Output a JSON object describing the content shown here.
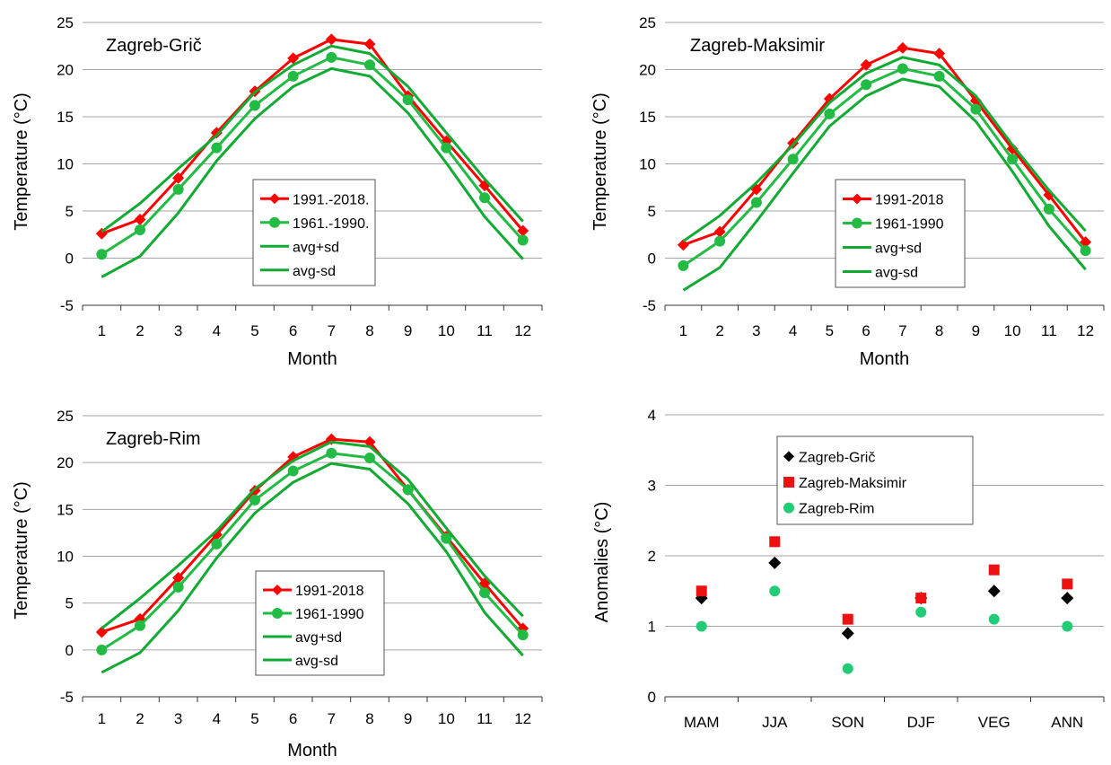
{
  "colors": {
    "recent": "#ff0000",
    "baseline": "#22bb44",
    "band": "#11aa33",
    "grid": "#a6a6a6",
    "marker_gric": "#000000",
    "marker_maksimir": "#ee1111",
    "marker_rim": "#22cc77"
  },
  "chart_data": [
    {
      "type": "line",
      "title": "Zagreb-Grič",
      "xlabel": "Month",
      "ylabel": "Temperature (°C)",
      "ylim": [
        -5,
        25
      ],
      "yticks": [
        "25",
        "20",
        "15",
        "10",
        "5",
        "0",
        "-5"
      ],
      "categories": [
        "1",
        "2",
        "3",
        "4",
        "5",
        "6",
        "7",
        "8",
        "9",
        "10",
        "11",
        "12"
      ],
      "legend_position": "center",
      "series": [
        {
          "name": "1991.-2018.",
          "role": "recent",
          "marker": "diamond",
          "values": [
            2.6,
            4.1,
            8.5,
            13.3,
            17.7,
            21.2,
            23.2,
            22.7,
            17.2,
            12.4,
            7.7,
            2.9
          ]
        },
        {
          "name": "1961.-1990.",
          "role": "baseline",
          "marker": "circle",
          "values": [
            0.4,
            3.0,
            7.3,
            11.7,
            16.2,
            19.3,
            21.3,
            20.5,
            16.8,
            11.7,
            6.4,
            1.9
          ]
        },
        {
          "name": "avg+sd",
          "role": "band",
          "marker": "none",
          "values": [
            2.8,
            5.8,
            9.5,
            13.0,
            17.6,
            20.5,
            22.5,
            21.7,
            18.2,
            13.3,
            8.4,
            3.9
          ]
        },
        {
          "name": "avg-sd",
          "role": "band",
          "marker": "none",
          "values": [
            -2.0,
            0.2,
            4.8,
            10.3,
            14.8,
            18.2,
            20.1,
            19.3,
            15.4,
            10.1,
            4.4,
            -0.1
          ]
        }
      ]
    },
    {
      "type": "line",
      "title": "Zagreb-Maksimir",
      "xlabel": "Month",
      "ylabel": "Temperature (°C)",
      "ylim": [
        -5,
        25
      ],
      "yticks": [
        "25",
        "20",
        "15",
        "10",
        "5",
        "0",
        "-5"
      ],
      "categories": [
        "1",
        "2",
        "3",
        "4",
        "5",
        "6",
        "7",
        "8",
        "9",
        "10",
        "11",
        "12"
      ],
      "legend_position": "center",
      "series": [
        {
          "name": "1991-2018",
          "role": "recent",
          "marker": "diamond",
          "values": [
            1.4,
            2.8,
            7.3,
            12.2,
            16.9,
            20.5,
            22.3,
            21.7,
            16.7,
            11.6,
            6.7,
            1.7
          ]
        },
        {
          "name": "1961-1990",
          "role": "baseline",
          "marker": "circle",
          "values": [
            -0.8,
            1.8,
            5.9,
            10.5,
            15.3,
            18.4,
            20.1,
            19.3,
            15.8,
            10.5,
            5.2,
            0.8
          ]
        },
        {
          "name": "avg+sd",
          "role": "band",
          "marker": "none",
          "values": [
            1.8,
            4.5,
            8.0,
            12.0,
            16.5,
            19.6,
            21.3,
            20.5,
            17.2,
            12.0,
            7.2,
            2.9
          ]
        },
        {
          "name": "avg-sd",
          "role": "band",
          "marker": "none",
          "values": [
            -3.4,
            -1.0,
            3.9,
            9.0,
            14.0,
            17.2,
            19.0,
            18.2,
            14.5,
            9.2,
            3.4,
            -1.2
          ]
        }
      ]
    },
    {
      "type": "line",
      "title": "Zagreb-Rim",
      "xlabel": "Month",
      "ylabel": "Temperature (°C)",
      "ylim": [
        -5,
        25
      ],
      "yticks": [
        "25",
        "20",
        "15",
        "10",
        "5",
        "0",
        "-5"
      ],
      "categories": [
        "1",
        "2",
        "3",
        "4",
        "5",
        "6",
        "7",
        "8",
        "9",
        "10",
        "11",
        "12"
      ],
      "legend_position": "bottom-center",
      "series": [
        {
          "name": "1991-2018",
          "role": "recent",
          "marker": "diamond",
          "values": [
            1.9,
            3.3,
            7.7,
            12.3,
            17.0,
            20.6,
            22.5,
            22.2,
            17.1,
            12.1,
            7.1,
            2.3
          ]
        },
        {
          "name": "1961-1990",
          "role": "baseline",
          "marker": "circle",
          "values": [
            0.0,
            2.6,
            6.7,
            11.3,
            16.0,
            19.1,
            21.0,
            20.5,
            17.1,
            11.9,
            6.1,
            1.6
          ]
        },
        {
          "name": "avg+sd",
          "role": "band",
          "marker": "none",
          "values": [
            2.3,
            5.5,
            9.0,
            12.7,
            17.2,
            20.2,
            22.2,
            21.7,
            18.2,
            13.0,
            7.9,
            3.6
          ]
        },
        {
          "name": "avg-sd",
          "role": "band",
          "marker": "none",
          "values": [
            -2.4,
            -0.3,
            4.2,
            9.8,
            14.6,
            17.9,
            19.9,
            19.3,
            15.6,
            10.5,
            4.0,
            -0.6
          ]
        }
      ]
    },
    {
      "type": "scatter",
      "title": "",
      "xlabel": "",
      "ylabel": "Anomalies (°C)",
      "ylim": [
        0,
        4
      ],
      "yticks": [
        "4",
        "3",
        "2",
        "1",
        "0"
      ],
      "categories": [
        "MAM",
        "JJA",
        "SON",
        "DJF",
        "VEG",
        "ANN"
      ],
      "legend_position": "top-center",
      "series": [
        {
          "name": "Zagreb-Grič",
          "role": "gric",
          "marker": "diamond",
          "values": [
            1.4,
            1.9,
            0.9,
            1.4,
            1.5,
            1.4
          ]
        },
        {
          "name": "Zagreb-Maksimir",
          "role": "maksimir",
          "marker": "square",
          "values": [
            1.5,
            2.2,
            1.1,
            1.4,
            1.8,
            1.6
          ]
        },
        {
          "name": "Zagreb-Rim",
          "role": "rim",
          "marker": "circle",
          "values": [
            1.0,
            1.5,
            0.4,
            1.2,
            1.1,
            1.0
          ]
        }
      ]
    }
  ]
}
